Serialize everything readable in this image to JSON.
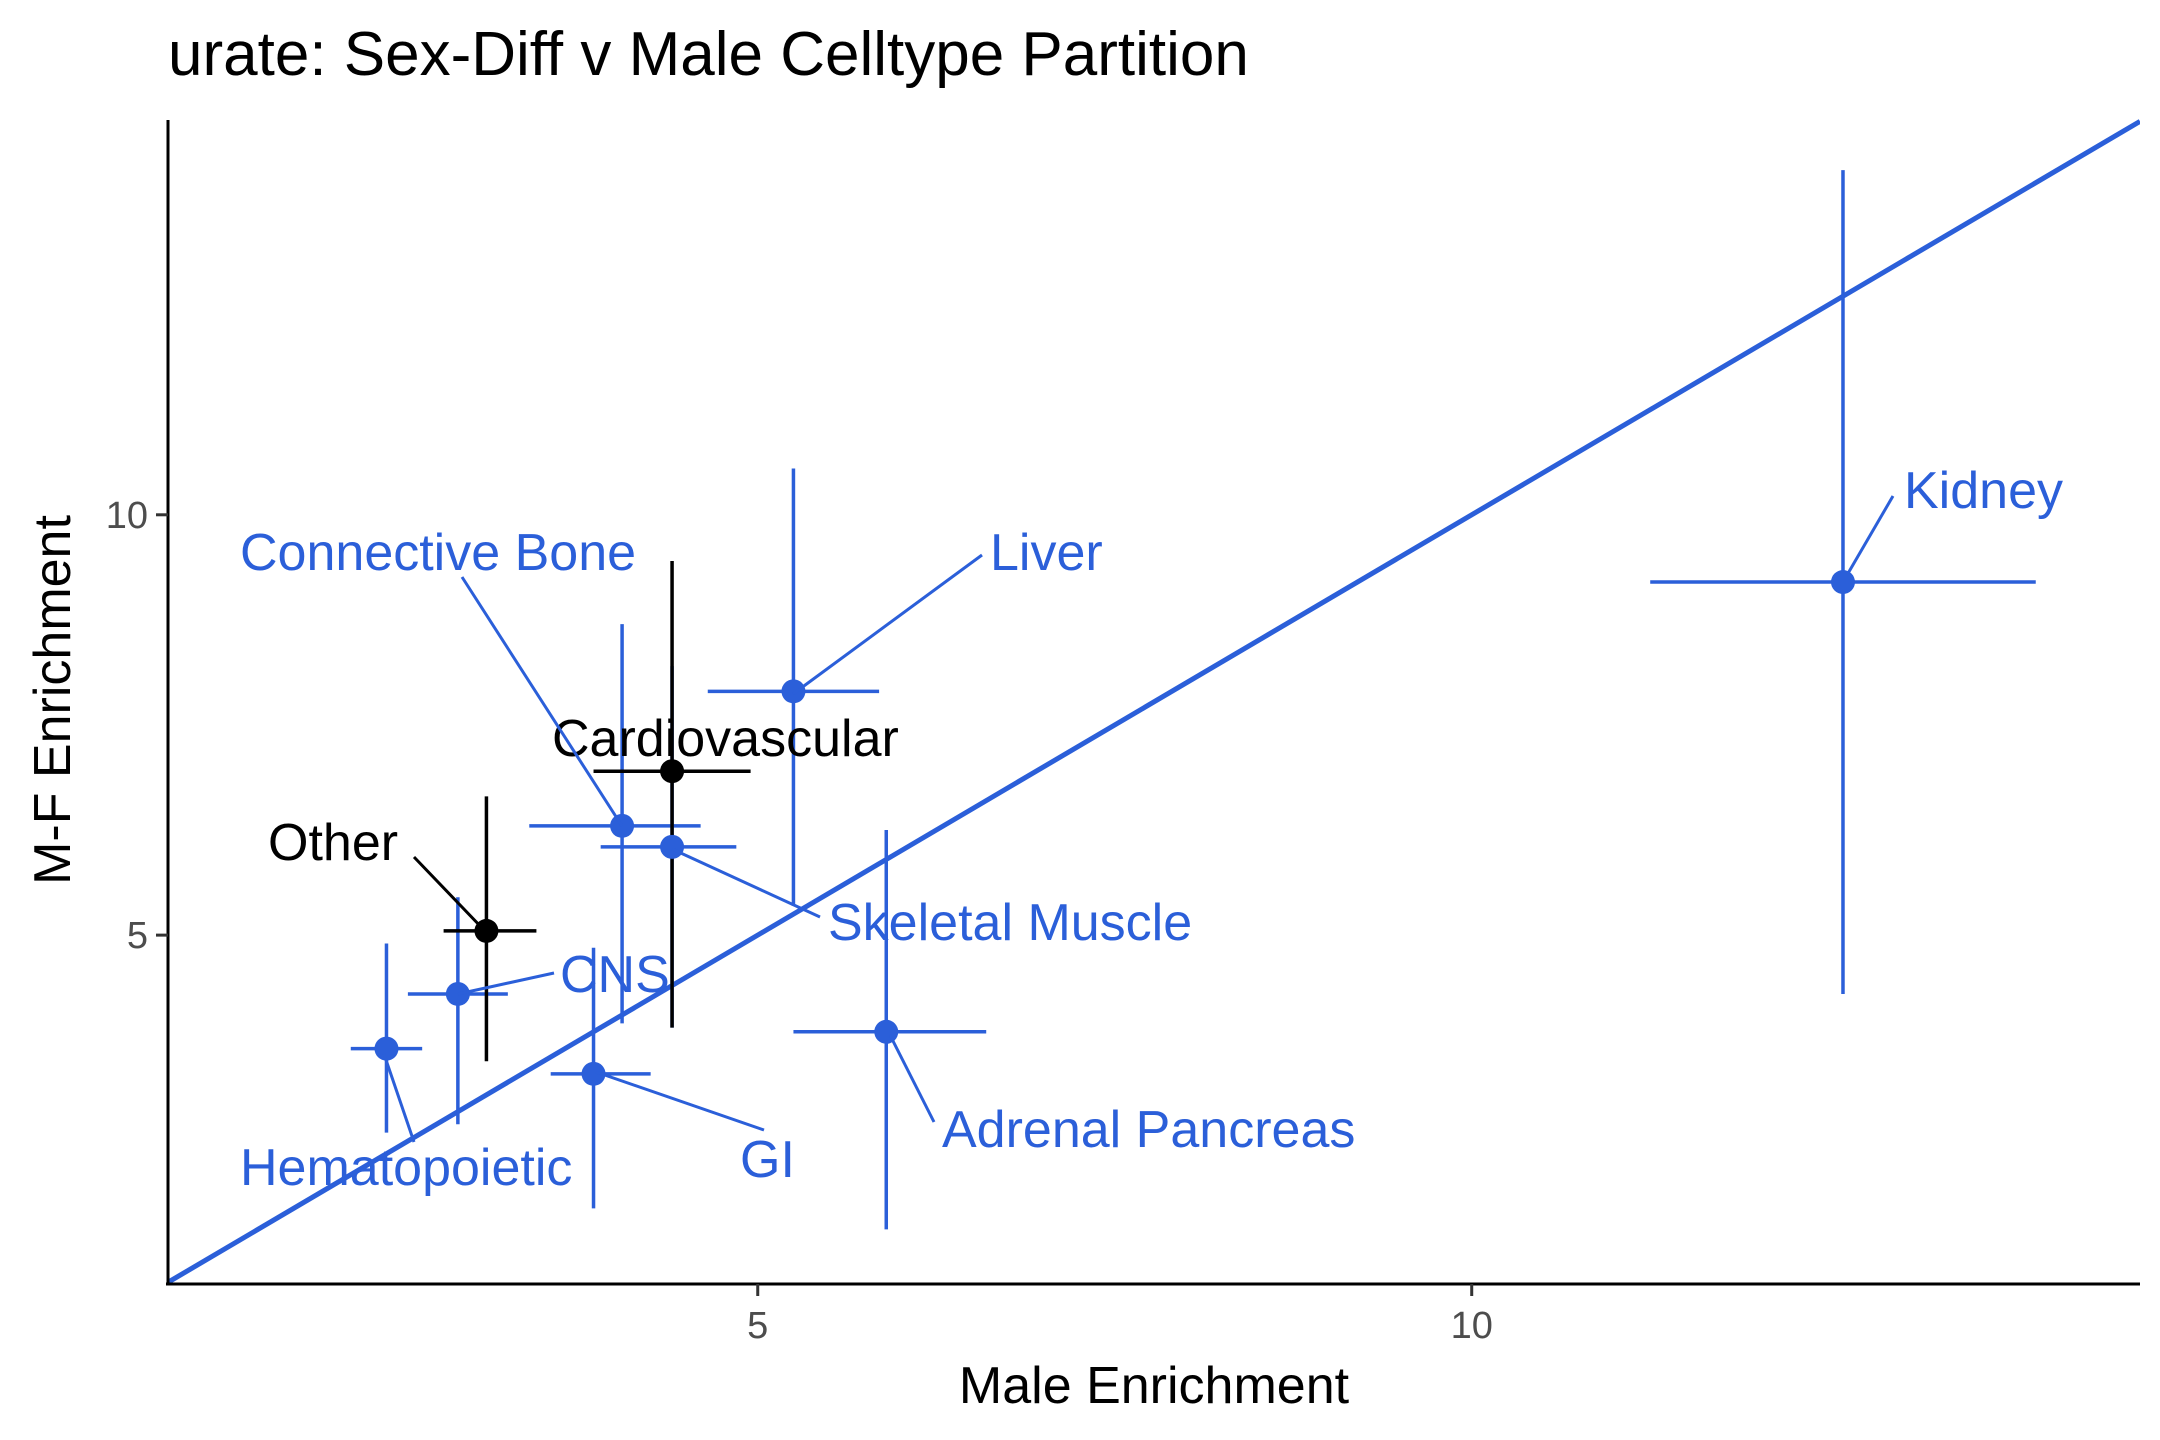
{
  "chart_data": {
    "type": "scatter",
    "title": "urate: Sex-Diff v Male Celltype Partition",
    "xlabel": "Male Enrichment",
    "ylabel": "M-F Enrichment",
    "xlim": [
      0.87,
      14.68
    ],
    "ylim": [
      0.85,
      14.72
    ],
    "x_ticks": [
      5,
      10
    ],
    "y_ticks": [
      5,
      10
    ],
    "grid": false,
    "legend": "none",
    "reference_line": {
      "type": "identity",
      "slope": 1,
      "intercept": 0,
      "color": "#2b5fd9"
    },
    "colors": {
      "highlight": "#2b5fd9",
      "other": "#000000"
    },
    "points": [
      {
        "label": "Kidney",
        "x": 12.6,
        "y": 9.2,
        "xerr": [
          11.25,
          13.95
        ],
        "yerr": [
          4.3,
          14.1
        ],
        "group": "highlight"
      },
      {
        "label": "Liver",
        "x": 5.25,
        "y": 7.9,
        "xerr": [
          4.65,
          5.85
        ],
        "yerr": [
          5.35,
          10.55
        ],
        "group": "highlight"
      },
      {
        "label": "Cardiovascular",
        "x": 4.4,
        "y": 6.95,
        "xerr": [
          3.85,
          4.95
        ],
        "yerr": [
          3.9,
          9.45
        ],
        "group": "other"
      },
      {
        "label": "Connective Bone",
        "x": 4.05,
        "y": 6.3,
        "xerr": [
          3.4,
          4.6
        ],
        "yerr": [
          3.95,
          8.7
        ],
        "group": "highlight"
      },
      {
        "label": "Skeletal Muscle",
        "x": 4.4,
        "y": 6.05,
        "xerr": [
          3.9,
          4.85
        ],
        "yerr": [
          3.9,
          8.2
        ],
        "group": "highlight"
      },
      {
        "label": "Other",
        "x": 3.1,
        "y": 5.05,
        "xerr": [
          2.8,
          3.45
        ],
        "yerr": [
          3.5,
          6.65
        ],
        "group": "other"
      },
      {
        "label": "CNS",
        "x": 2.9,
        "y": 4.3,
        "xerr": [
          2.55,
          3.25
        ],
        "yerr": [
          2.75,
          5.45
        ],
        "group": "highlight"
      },
      {
        "label": "Hematopoietic",
        "x": 2.4,
        "y": 3.65,
        "xerr": [
          2.15,
          2.65
        ],
        "yerr": [
          2.65,
          4.9
        ],
        "group": "highlight"
      },
      {
        "label": "GI",
        "x": 3.85,
        "y": 3.35,
        "xerr": [
          3.55,
          4.25
        ],
        "yerr": [
          1.75,
          4.85
        ],
        "group": "highlight"
      },
      {
        "label": "Adrenal Pancreas",
        "x": 5.9,
        "y": 3.85,
        "xerr": [
          5.25,
          6.6
        ],
        "yerr": [
          1.5,
          6.25
        ],
        "group": "highlight"
      }
    ]
  }
}
